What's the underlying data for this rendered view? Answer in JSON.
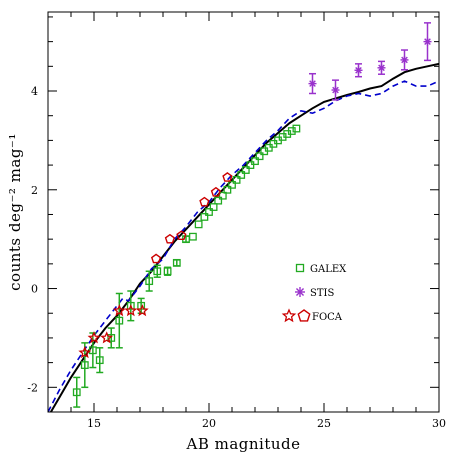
{
  "chart_data": {
    "type": "scatter",
    "xlabel": "AB magnitude",
    "ylabel": "counts deg⁻² mag⁻¹",
    "xlim": [
      13,
      30
    ],
    "ylim": [
      -2.5,
      5.6
    ],
    "x_ticks": [
      15,
      20,
      25,
      30
    ],
    "y_ticks": [
      -2,
      0,
      2,
      4
    ],
    "legend_position": "right-center",
    "colors": {
      "galex": "#22aa22",
      "stis": "#9932cc",
      "foca": "#cc0000",
      "model_solid": "#000000",
      "model_dashed": "#0000cc"
    },
    "series": [
      {
        "name": "GALEX",
        "marker": "square",
        "points": [
          {
            "x": 14.25,
            "y": -2.1,
            "err": 0.3
          },
          {
            "x": 14.6,
            "y": -1.55,
            "err": 0.45
          },
          {
            "x": 14.95,
            "y": -1.25,
            "err": 0.35
          },
          {
            "x": 15.25,
            "y": -1.45,
            "err": 0.25
          },
          {
            "x": 15.75,
            "y": -1.0,
            "err": 0.2
          },
          {
            "x": 16.1,
            "y": -0.65,
            "err": 0.55
          },
          {
            "x": 16.6,
            "y": -0.35,
            "err": 0.3
          },
          {
            "x": 17.05,
            "y": -0.35,
            "err": 0.15
          },
          {
            "x": 17.4,
            "y": 0.15,
            "err": 0.2
          },
          {
            "x": 17.75,
            "y": 0.35,
            "err": 0.12
          },
          {
            "x": 18.2,
            "y": 0.35,
            "err": 0.08
          },
          {
            "x": 18.6,
            "y": 0.52,
            "err": 0.06
          },
          {
            "x": 19.0,
            "y": 1.0,
            "err": 0.06
          },
          {
            "x": 19.3,
            "y": 1.05,
            "err": 0.05
          },
          {
            "x": 19.55,
            "y": 1.3,
            "err": 0.04
          },
          {
            "x": 19.8,
            "y": 1.45,
            "err": 0.04
          },
          {
            "x": 20.0,
            "y": 1.55,
            "err": 0.04
          },
          {
            "x": 20.2,
            "y": 1.65,
            "err": 0.04
          },
          {
            "x": 20.4,
            "y": 1.78,
            "err": 0.04
          },
          {
            "x": 20.6,
            "y": 1.88,
            "err": 0.04
          },
          {
            "x": 20.8,
            "y": 2.0,
            "err": 0.04
          },
          {
            "x": 21.0,
            "y": 2.1,
            "err": 0.04
          },
          {
            "x": 21.2,
            "y": 2.2,
            "err": 0.04
          },
          {
            "x": 21.4,
            "y": 2.3,
            "err": 0.04
          },
          {
            "x": 21.6,
            "y": 2.4,
            "err": 0.04
          },
          {
            "x": 21.8,
            "y": 2.5,
            "err": 0.04
          },
          {
            "x": 22.0,
            "y": 2.58,
            "err": 0.04
          },
          {
            "x": 22.2,
            "y": 2.68,
            "err": 0.04
          },
          {
            "x": 22.4,
            "y": 2.78,
            "err": 0.04
          },
          {
            "x": 22.6,
            "y": 2.85,
            "err": 0.04
          },
          {
            "x": 22.8,
            "y": 2.93,
            "err": 0.04
          },
          {
            "x": 23.0,
            "y": 3.0,
            "err": 0.04
          },
          {
            "x": 23.2,
            "y": 3.07,
            "err": 0.04
          },
          {
            "x": 23.4,
            "y": 3.13,
            "err": 0.04
          },
          {
            "x": 23.6,
            "y": 3.19,
            "err": 0.04
          },
          {
            "x": 23.8,
            "y": 3.24,
            "err": 0.04
          }
        ]
      },
      {
        "name": "STIS",
        "marker": "asterisk",
        "points": [
          {
            "x": 24.5,
            "y": 4.15,
            "err": 0.2
          },
          {
            "x": 25.5,
            "y": 4.02,
            "err": 0.2
          },
          {
            "x": 26.5,
            "y": 4.42,
            "err": 0.13
          },
          {
            "x": 27.5,
            "y": 4.47,
            "err": 0.13
          },
          {
            "x": 28.5,
            "y": 4.63,
            "err": 0.2
          },
          {
            "x": 29.5,
            "y": 5.0,
            "err": 0.38
          }
        ]
      },
      {
        "name": "FOCA",
        "marker": "pentagon-star",
        "points": [
          {
            "x": 14.6,
            "y": -1.3,
            "marker": "star"
          },
          {
            "x": 15.0,
            "y": -1.0,
            "marker": "star"
          },
          {
            "x": 15.55,
            "y": -1.0,
            "marker": "star"
          },
          {
            "x": 16.1,
            "y": -0.45,
            "marker": "star"
          },
          {
            "x": 16.6,
            "y": -0.45,
            "marker": "star"
          },
          {
            "x": 17.1,
            "y": -0.45,
            "marker": "star"
          },
          {
            "x": 17.7,
            "y": 0.6,
            "marker": "pentagon"
          },
          {
            "x": 18.3,
            "y": 1.0,
            "marker": "pentagon"
          },
          {
            "x": 18.8,
            "y": 1.07,
            "marker": "pentagon"
          },
          {
            "x": 19.8,
            "y": 1.75,
            "marker": "pentagon"
          },
          {
            "x": 20.3,
            "y": 1.95,
            "marker": "pentagon"
          },
          {
            "x": 20.8,
            "y": 2.25,
            "marker": "pentagon"
          }
        ]
      }
    ],
    "lines": [
      {
        "style": "solid",
        "x": [
          13,
          13.5,
          14,
          14.5,
          15,
          15.5,
          16,
          16.5,
          17,
          17.5,
          18,
          18.5,
          19,
          19.5,
          20,
          20.5,
          21,
          21.5,
          22,
          22.5,
          23,
          23.5,
          24,
          24.5,
          25,
          25.5,
          26,
          26.5,
          27,
          27.5,
          28,
          28.5,
          29,
          29.5,
          30
        ],
        "y": [
          -2.6,
          -2.2,
          -1.8,
          -1.45,
          -1.1,
          -0.8,
          -0.55,
          -0.25,
          0.1,
          0.35,
          0.65,
          0.95,
          1.2,
          1.45,
          1.7,
          1.95,
          2.2,
          2.45,
          2.7,
          2.95,
          3.15,
          3.35,
          3.5,
          3.65,
          3.78,
          3.85,
          3.92,
          3.98,
          4.05,
          4.1,
          4.25,
          4.38,
          4.45,
          4.5,
          4.55
        ]
      },
      {
        "style": "dashed",
        "x": [
          13,
          13.5,
          14,
          14.5,
          15,
          15.5,
          16,
          16.25,
          16.5,
          17,
          17.5,
          18,
          18.5,
          19,
          19.5,
          20,
          20.5,
          21,
          21.5,
          22,
          22.5,
          23,
          23.5,
          24,
          24.5,
          25,
          25.5,
          26,
          26.5,
          27,
          27.5,
          28,
          28.5,
          29,
          29.5,
          30
        ],
        "y": [
          -2.5,
          -2.05,
          -1.65,
          -1.3,
          -0.95,
          -0.65,
          -0.35,
          -0.2,
          -0.25,
          0.05,
          0.4,
          0.6,
          1.0,
          1.25,
          1.55,
          1.75,
          2.05,
          2.3,
          2.5,
          2.75,
          3.0,
          3.2,
          3.45,
          3.6,
          3.55,
          3.65,
          3.8,
          3.9,
          3.95,
          3.9,
          3.95,
          4.1,
          4.2,
          4.1,
          4.1,
          4.2
        ]
      }
    ]
  }
}
